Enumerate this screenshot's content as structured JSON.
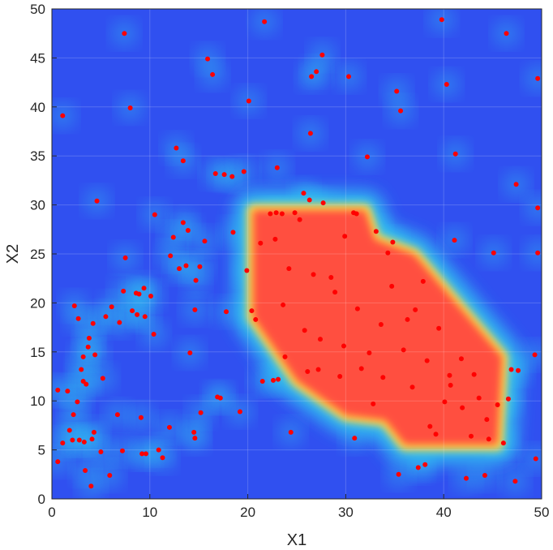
{
  "chart_data": {
    "type": "heatmap",
    "title": "",
    "xlabel": "X1",
    "ylabel": "X2",
    "xlim": [
      0,
      50
    ],
    "ylim": [
      0,
      50
    ],
    "xticks": [
      0,
      10,
      20,
      30,
      40,
      50
    ],
    "yticks": [
      0,
      5,
      10,
      15,
      20,
      25,
      30,
      35,
      40,
      45,
      50
    ],
    "colormap": "jet",
    "grid": true,
    "marker_color": "#ff0000",
    "colors": {
      "low": "#3050f0",
      "mid": "#30c8f0",
      "high": "#ff5040",
      "text": "#262626"
    },
    "hot_region": [
      [
        20.5,
        29.5
      ],
      [
        32,
        29.5
      ],
      [
        33,
        26.5
      ],
      [
        37,
        25
      ],
      [
        46,
        14.5
      ],
      [
        45.5,
        5.5
      ],
      [
        36,
        5.5
      ],
      [
        34,
        8
      ],
      [
        30,
        8.5
      ],
      [
        25,
        12
      ],
      [
        20.5,
        18.5
      ]
    ],
    "points": [
      [
        0.6,
        11.1
      ],
      [
        0.6,
        3.8
      ],
      [
        1.1,
        39.1
      ],
      [
        1.1,
        5.7
      ],
      [
        1.6,
        11
      ],
      [
        1.8,
        7
      ],
      [
        2.1,
        6
      ],
      [
        2.2,
        8.6
      ],
      [
        2.3,
        19.7
      ],
      [
        2.6,
        9.9
      ],
      [
        2.7,
        18.4
      ],
      [
        2.8,
        6
      ],
      [
        3,
        13.2
      ],
      [
        3.2,
        14.5
      ],
      [
        3.2,
        12
      ],
      [
        3.3,
        5.8
      ],
      [
        3.4,
        2.9
      ],
      [
        3.5,
        11.7
      ],
      [
        3.7,
        15.5
      ],
      [
        3.8,
        16.4
      ],
      [
        4,
        1.3
      ],
      [
        4.1,
        6.1
      ],
      [
        4.2,
        17.9
      ],
      [
        4.3,
        6.8
      ],
      [
        4.4,
        14.7
      ],
      [
        4.6,
        30.4
      ],
      [
        5,
        4.8
      ],
      [
        5.2,
        12.3
      ],
      [
        5.5,
        18.6
      ],
      [
        5.9,
        2.4
      ],
      [
        6.1,
        19.6
      ],
      [
        6.7,
        8.6
      ],
      [
        6.9,
        18
      ],
      [
        7.2,
        4.9
      ],
      [
        7.3,
        21.2
      ],
      [
        7.4,
        47.5
      ],
      [
        7.5,
        24.6
      ],
      [
        8,
        39.9
      ],
      [
        8.2,
        19.2
      ],
      [
        8.6,
        21
      ],
      [
        8.7,
        18.8
      ],
      [
        8.9,
        20.9
      ],
      [
        9.1,
        8.3
      ],
      [
        9.2,
        4.6
      ],
      [
        9.4,
        21.5
      ],
      [
        9.5,
        18.6
      ],
      [
        9.6,
        4.6
      ],
      [
        10.1,
        20.7
      ],
      [
        10.4,
        16.8
      ],
      [
        10.5,
        29
      ],
      [
        10.9,
        5
      ],
      [
        11.3,
        4.2
      ],
      [
        12,
        7.3
      ],
      [
        12.1,
        24.8
      ],
      [
        12.4,
        26.7
      ],
      [
        12.7,
        35.8
      ],
      [
        13,
        23.5
      ],
      [
        13.4,
        28.2
      ],
      [
        13.4,
        34.5
      ],
      [
        13.7,
        23.8
      ],
      [
        13.9,
        27.4
      ],
      [
        14.1,
        14.9
      ],
      [
        14.5,
        6.8
      ],
      [
        14.6,
        6.2
      ],
      [
        14.6,
        19.3
      ],
      [
        14.7,
        22.3
      ],
      [
        15.1,
        23.7
      ],
      [
        15.2,
        8.8
      ],
      [
        15.6,
        26.3
      ],
      [
        15.9,
        44.9
      ],
      [
        16.4,
        43.3
      ],
      [
        16.7,
        33.2
      ],
      [
        16.9,
        10.4
      ],
      [
        17.2,
        10.3
      ],
      [
        17.6,
        33.1
      ],
      [
        17.8,
        19.1
      ],
      [
        18.4,
        32.9
      ],
      [
        18.5,
        27.2
      ],
      [
        19.2,
        8.9
      ],
      [
        19.6,
        33.4
      ],
      [
        19.9,
        23.3
      ],
      [
        20.1,
        40.6
      ],
      [
        20.4,
        19.2
      ],
      [
        20.8,
        18.3
      ],
      [
        21.3,
        26.1
      ],
      [
        21.5,
        12
      ],
      [
        21.7,
        48.7
      ],
      [
        22.3,
        29.1
      ],
      [
        22.6,
        12.1
      ],
      [
        22.9,
        29.2
      ],
      [
        23,
        33.8
      ],
      [
        23.1,
        12.2
      ],
      [
        23.5,
        29.1
      ],
      [
        23.8,
        14.5
      ],
      [
        24.4,
        6.8
      ],
      [
        24.8,
        29.2
      ],
      [
        25.3,
        28.5
      ],
      [
        25.7,
        31.2
      ],
      [
        26.1,
        13
      ],
      [
        26.3,
        30.5
      ],
      [
        26.4,
        37.3
      ],
      [
        26.5,
        43.1
      ],
      [
        27,
        43.6
      ],
      [
        27.2,
        13.2
      ],
      [
        27.6,
        45.3
      ],
      [
        27.7,
        30.2
      ],
      [
        28.5,
        22.6
      ],
      [
        29.4,
        12.5
      ],
      [
        29.9,
        26.8
      ],
      [
        30.3,
        43.1
      ],
      [
        30.8,
        29.2
      ],
      [
        30.9,
        6.2
      ],
      [
        31.1,
        29.1
      ],
      [
        31.6,
        13.3
      ],
      [
        32.2,
        34.9
      ],
      [
        32.8,
        9.7
      ],
      [
        33.1,
        27.3
      ],
      [
        33.8,
        12.4
      ],
      [
        34.3,
        25.1
      ],
      [
        34.8,
        26.2
      ],
      [
        35.2,
        41.6
      ],
      [
        35.4,
        2.5
      ],
      [
        35.6,
        39.6
      ],
      [
        36.3,
        18.3
      ],
      [
        36.8,
        11.4
      ],
      [
        37.4,
        3.2
      ],
      [
        37.9,
        22.2
      ],
      [
        38.1,
        3.5
      ],
      [
        38.6,
        7.4
      ],
      [
        39.2,
        6.6
      ],
      [
        39.8,
        48.9
      ],
      [
        40.1,
        9.9
      ],
      [
        40.3,
        42.3
      ],
      [
        40.6,
        12.6
      ],
      [
        41.1,
        26.4
      ],
      [
        41.2,
        35.2
      ],
      [
        41.8,
        14.3
      ],
      [
        42.3,
        2.1
      ],
      [
        42.8,
        6.4
      ],
      [
        43.6,
        10.3
      ],
      [
        44.2,
        2.4
      ],
      [
        44.6,
        6.1
      ],
      [
        45.1,
        25.1
      ],
      [
        45.5,
        9.6
      ],
      [
        46.1,
        5.7
      ],
      [
        46.4,
        47.5
      ],
      [
        46.6,
        10.2
      ],
      [
        46.9,
        13.2
      ],
      [
        47.3,
        1.8
      ],
      [
        47.4,
        32.1
      ],
      [
        47.6,
        13.1
      ],
      [
        49.3,
        14.7
      ],
      [
        49.4,
        4.1
      ],
      [
        49.6,
        42.9
      ],
      [
        49.6,
        29.7
      ],
      [
        49.6,
        25.1
      ],
      [
        22.8,
        26.5
      ],
      [
        24.2,
        23.5
      ],
      [
        26.7,
        22.9
      ],
      [
        28.9,
        21.1
      ],
      [
        31.2,
        19.4
      ],
      [
        33.6,
        17.8
      ],
      [
        35.9,
        15.2
      ],
      [
        38.3,
        14.1
      ],
      [
        40.7,
        11.6
      ],
      [
        43.1,
        12.7
      ],
      [
        23.6,
        19.8
      ],
      [
        25.8,
        17.2
      ],
      [
        27.4,
        16.3
      ],
      [
        29.8,
        15.6
      ],
      [
        32.4,
        14.9
      ],
      [
        34.7,
        21.7
      ],
      [
        37.1,
        19.3
      ],
      [
        39.5,
        17.4
      ],
      [
        41.9,
        9.3
      ],
      [
        44.4,
        8.1
      ]
    ]
  }
}
